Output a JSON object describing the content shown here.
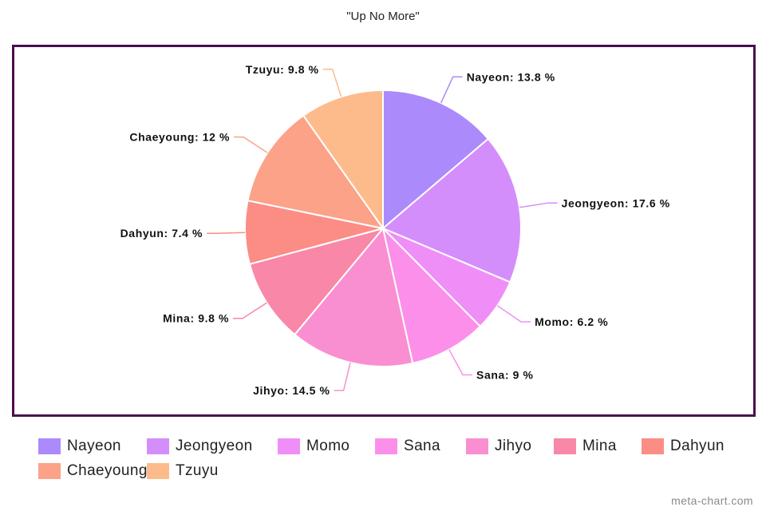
{
  "chart_data": {
    "type": "pie",
    "title": "\"Up No More\"",
    "label_suffix": " %",
    "slices": [
      {
        "label": "Nayeon",
        "value": 13.8,
        "color": "#ab8afb"
      },
      {
        "label": "Jeongyeon",
        "value": 17.6,
        "color": "#d48efb"
      },
      {
        "label": "Momo",
        "value": 6.2,
        "color": "#f08ef8"
      },
      {
        "label": "Sana",
        "value": 9,
        "color": "#fc8fe9"
      },
      {
        "label": "Jihyo",
        "value": 14.5,
        "color": "#f98fd0"
      },
      {
        "label": "Mina",
        "value": 9.8,
        "color": "#f987a8"
      },
      {
        "label": "Dahyun",
        "value": 7.4,
        "color": "#fb8d85"
      },
      {
        "label": "Chaeyoung",
        "value": 12,
        "color": "#fba288"
      },
      {
        "label": "Tzuyu",
        "value": 9.8,
        "color": "#fdbb8c"
      }
    ],
    "legend_position": "bottom"
  },
  "watermark": "meta-chart.com"
}
